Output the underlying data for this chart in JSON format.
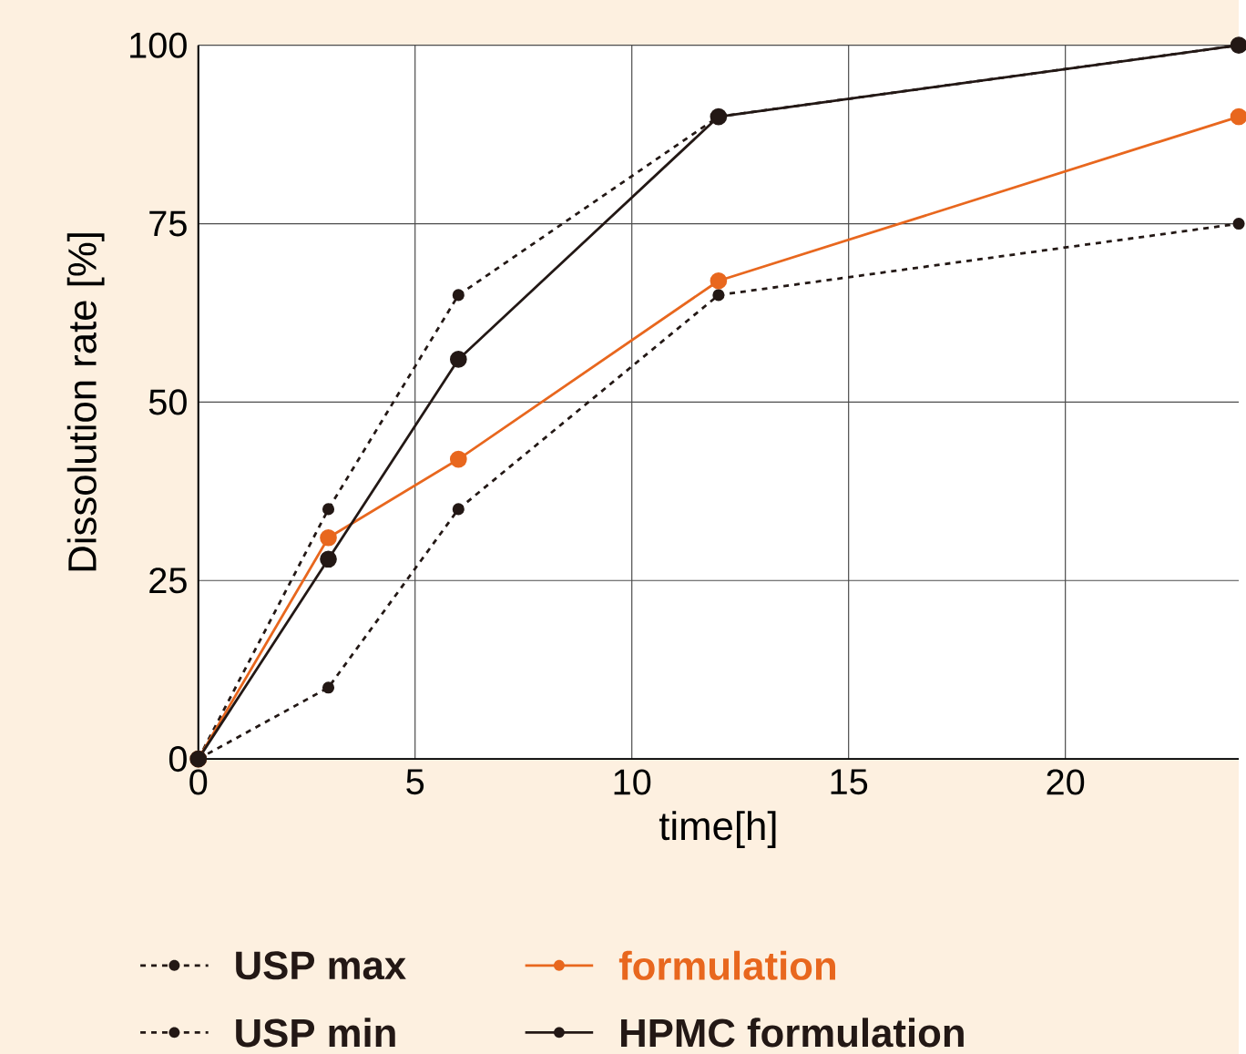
{
  "chart_data": {
    "type": "line",
    "xlabel": "time[h]",
    "ylabel": "Dissolution rate  [%]",
    "x": [
      0,
      3,
      6,
      12,
      24
    ],
    "series": [
      {
        "name": "USP max",
        "color": "#231815",
        "line_style": "dashed",
        "values": [
          0,
          35,
          65,
          90,
          100
        ]
      },
      {
        "name": "USP min",
        "color": "#231815",
        "line_style": "dashed",
        "values": [
          0,
          10,
          35,
          65,
          75
        ]
      },
      {
        "name": "formulation",
        "color": "#e8671e",
        "line_style": "solid",
        "values": [
          0,
          31,
          42,
          67,
          90
        ]
      },
      {
        "name": "HPMC formulation",
        "color": "#231815",
        "line_style": "solid",
        "values": [
          0,
          28,
          56,
          90,
          100
        ]
      }
    ],
    "xlim": [
      0,
      24
    ],
    "ylim": [
      0,
      100
    ],
    "xticks": [
      0,
      5,
      10,
      15,
      20
    ],
    "yticks": [
      0,
      25,
      50,
      75,
      100
    ],
    "grid": true,
    "legend": "bottom",
    "marker": "circle"
  }
}
